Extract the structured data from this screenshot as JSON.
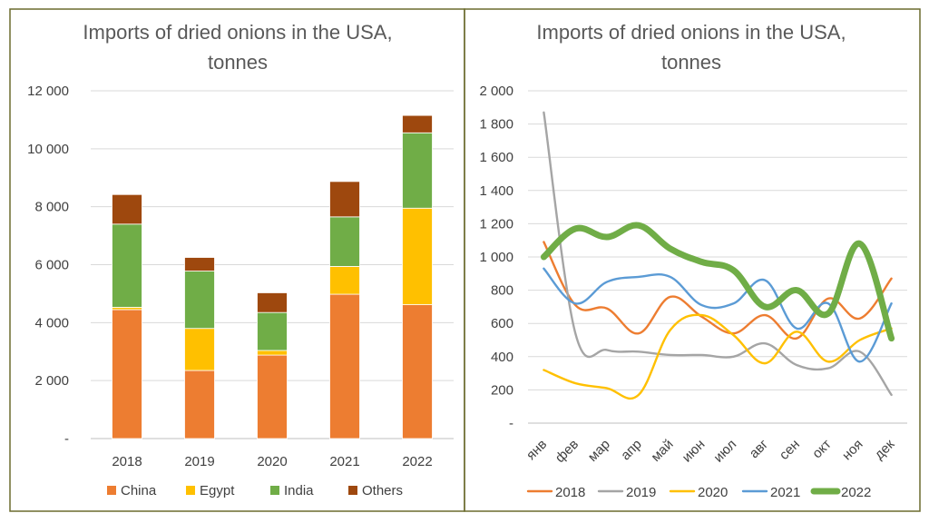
{
  "chart_data": [
    {
      "type": "bar",
      "stacked": true,
      "title": "Imports of dried onions in the USA, tonnes",
      "title_lines": [
        "Imports of dried onions in the USA,",
        "tonnes"
      ],
      "categories": [
        "2018",
        "2019",
        "2020",
        "2021",
        "2022"
      ],
      "series": [
        {
          "name": "China",
          "color": "#ED7D31",
          "values": [
            4450,
            2350,
            2880,
            4980,
            4620
          ]
        },
        {
          "name": "Egypt",
          "color": "#FFC000",
          "values": [
            80,
            1450,
            160,
            960,
            3330
          ]
        },
        {
          "name": "India",
          "color": "#70AD47",
          "values": [
            2870,
            1980,
            1310,
            1710,
            2600
          ]
        },
        {
          "name": "Others",
          "color": "#9E480E",
          "values": [
            1020,
            470,
            680,
            1220,
            600
          ]
        }
      ],
      "ylim": [
        0,
        12000
      ],
      "yticks": [
        0,
        2000,
        4000,
        6000,
        8000,
        10000,
        12000
      ],
      "ytick_labels": [
        "-",
        "2 000",
        "4 000",
        "6 000",
        "8 000",
        "10 000",
        "12 000"
      ],
      "grid": true,
      "legend": "bottom"
    },
    {
      "type": "line",
      "title": "Imports of dried onions in the USA, tonnes",
      "title_lines": [
        "Imports of dried onions in the USA,",
        "tonnes"
      ],
      "x": [
        "янв",
        "фев",
        "мар",
        "апр",
        "май",
        "июн",
        "июл",
        "авг",
        "сен",
        "окт",
        "ноя",
        "дек"
      ],
      "series": [
        {
          "name": "2018",
          "color": "#ED7D31",
          "values": [
            1090,
            710,
            690,
            540,
            760,
            640,
            540,
            650,
            510,
            750,
            630,
            870
          ]
        },
        {
          "name": "2019",
          "color": "#A5A5A5",
          "values": [
            1870,
            540,
            440,
            430,
            410,
            410,
            400,
            480,
            350,
            330,
            430,
            170
          ]
        },
        {
          "name": "2020",
          "color": "#FFC000",
          "values": [
            320,
            240,
            210,
            170,
            560,
            650,
            530,
            360,
            550,
            370,
            500,
            570
          ]
        },
        {
          "name": "2021",
          "color": "#5B9BD5",
          "values": [
            930,
            720,
            850,
            880,
            880,
            710,
            720,
            860,
            570,
            720,
            370,
            720
          ]
        },
        {
          "name": "2022",
          "color": "#70AD47",
          "values": [
            1000,
            1170,
            1120,
            1190,
            1050,
            970,
            920,
            700,
            800,
            660,
            1080,
            510
          ]
        }
      ],
      "ylim": [
        0,
        2000
      ],
      "yticks": [
        0,
        200,
        400,
        600,
        800,
        1000,
        1200,
        1400,
        1600,
        1800,
        2000
      ],
      "ytick_labels": [
        "-",
        "200",
        "400",
        "600",
        "800",
        "1 000",
        "1 200",
        "1 400",
        "1 600",
        "1 800",
        "2 000"
      ],
      "grid": true,
      "legend": "bottom"
    }
  ]
}
